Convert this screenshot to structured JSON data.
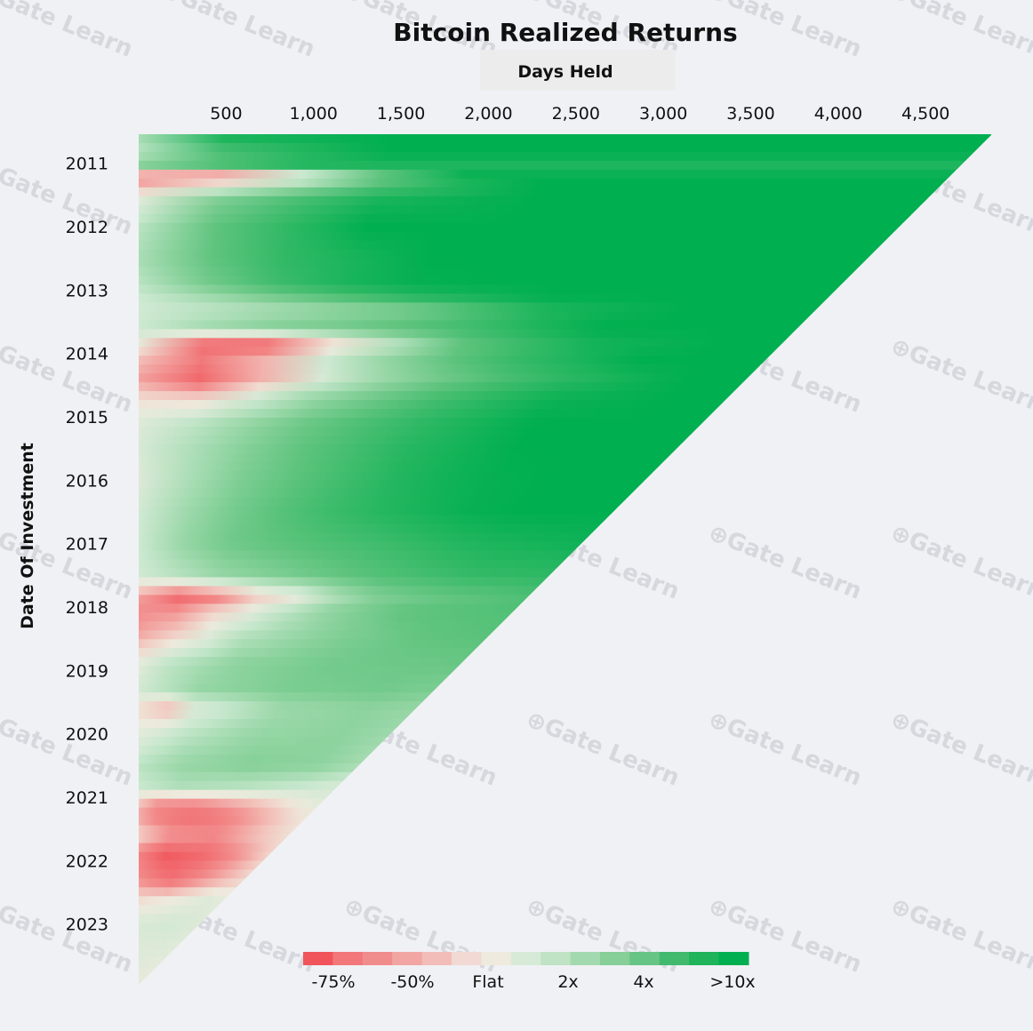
{
  "chart_data": {
    "type": "heatmap",
    "title": "Bitcoin Realized Returns",
    "xlabel": "Days Held",
    "ylabel": "Date Of Investment",
    "x_ticks": [
      500,
      1000,
      1500,
      2000,
      2500,
      3000,
      3500,
      4000,
      4500
    ],
    "x_tick_labels": [
      "500",
      "1,000",
      "1,500",
      "2,000",
      "2,500",
      "3,000",
      "3,500",
      "4,000",
      "4,500"
    ],
    "xlim": [
      0,
      4880
    ],
    "y_ticks": [
      "2011",
      "2012",
      "2013",
      "2014",
      "2015",
      "2016",
      "2017",
      "2018",
      "2019",
      "2020",
      "2021",
      "2022",
      "2023"
    ],
    "ylim": [
      "2010-07",
      "2023-12"
    ],
    "legend": {
      "labels": [
        "-75%",
        "-50%",
        "Flat",
        "2x",
        "4x",
        ">10x"
      ],
      "colors": [
        "#f0545a",
        "#f2777a",
        "#f08c8c",
        "#f2a6a3",
        "#f2bdb8",
        "#f2d9d4",
        "#eeeadd",
        "#d6ead7",
        "#bfe3c4",
        "#a3d9ae",
        "#86cf98",
        "#66c484",
        "#41ba6d",
        "#1fb35a",
        "#00af50"
      ]
    },
    "rows": [
      {
        "year": 2010.65,
        "returns": [
          [
            0,
            1.0
          ],
          [
            0.05,
            2.5
          ],
          [
            0.3,
            3.0
          ]
        ]
      },
      {
        "year": 2010.8,
        "returns": [
          [
            0,
            0.8
          ],
          [
            0.1,
            2.0
          ],
          [
            0.3,
            3.0
          ]
        ]
      },
      {
        "year": 2011.1,
        "returns": [
          [
            0,
            1.5
          ],
          [
            0.2,
            2.5
          ]
        ]
      },
      {
        "year": 2011.2,
        "returns": [
          [
            0,
            -1.5
          ],
          [
            0.06,
            -2.3
          ],
          [
            0.16,
            -1.0
          ],
          [
            0.26,
            1.0
          ],
          [
            0.4,
            3.0
          ]
        ]
      },
      {
        "year": 2011.35,
        "returns": [
          [
            0,
            -0.5
          ],
          [
            0.12,
            0.5
          ],
          [
            0.3,
            2.0
          ],
          [
            0.5,
            3.0
          ]
        ]
      },
      {
        "year": 2011.6,
        "returns": [
          [
            0,
            0.3
          ],
          [
            0.1,
            1.5
          ],
          [
            0.3,
            2.7
          ],
          [
            0.5,
            3.0
          ]
        ]
      },
      {
        "year": 2012.0,
        "returns": [
          [
            0,
            0.8
          ],
          [
            0.1,
            1.8
          ],
          [
            0.3,
            3.0
          ]
        ]
      },
      {
        "year": 2012.5,
        "returns": [
          [
            0,
            1.0
          ],
          [
            0.15,
            2.2
          ],
          [
            0.4,
            3.0
          ]
        ]
      },
      {
        "year": 2012.9,
        "returns": [
          [
            0,
            0.8
          ],
          [
            0.15,
            2.0
          ],
          [
            0.35,
            2.9
          ],
          [
            0.5,
            3.0
          ]
        ]
      },
      {
        "year": 2013.1,
        "returns": [
          [
            0,
            0.6
          ],
          [
            0.2,
            1.6
          ],
          [
            0.4,
            2.5
          ],
          [
            0.6,
            3.0
          ]
        ]
      },
      {
        "year": 2013.3,
        "returns": [
          [
            0,
            0.5
          ],
          [
            0.2,
            1.0
          ],
          [
            0.4,
            1.5
          ],
          [
            0.6,
            2.6
          ],
          [
            0.8,
            3.0
          ]
        ]
      },
      {
        "year": 2013.6,
        "returns": [
          [
            0,
            0.6
          ],
          [
            0.15,
            1.3
          ],
          [
            0.3,
            1.6
          ],
          [
            0.5,
            2.2
          ],
          [
            0.7,
            3.0
          ]
        ]
      },
      {
        "year": 2013.85,
        "returns": [
          [
            0,
            0.1
          ],
          [
            0.05,
            -1.0
          ],
          [
            0.12,
            -1.8
          ],
          [
            0.2,
            -1.6
          ],
          [
            0.28,
            -0.5
          ],
          [
            0.35,
            0.3
          ],
          [
            0.5,
            1.8
          ],
          [
            0.7,
            2.7
          ],
          [
            0.9,
            3.0
          ]
        ]
      },
      {
        "year": 2014.1,
        "returns": [
          [
            0,
            -0.5
          ],
          [
            0.05,
            -1.4
          ],
          [
            0.12,
            -1.3
          ],
          [
            0.2,
            -0.6
          ],
          [
            0.3,
            0.6
          ],
          [
            0.45,
            1.6
          ],
          [
            0.6,
            2.3
          ],
          [
            0.8,
            3.0
          ]
        ]
      },
      {
        "year": 2014.4,
        "returns": [
          [
            0,
            -0.8
          ],
          [
            0.05,
            -1.8
          ],
          [
            0.15,
            -1.5
          ],
          [
            0.22,
            -0.3
          ],
          [
            0.35,
            0.9
          ],
          [
            0.55,
            1.9
          ],
          [
            0.75,
            2.6
          ],
          [
            0.9,
            3.0
          ]
        ]
      },
      {
        "year": 2014.7,
        "returns": [
          [
            0,
            -0.2
          ],
          [
            0.07,
            -0.6
          ],
          [
            0.15,
            0.2
          ],
          [
            0.3,
            1.2
          ],
          [
            0.5,
            2.1
          ],
          [
            0.7,
            2.8
          ],
          [
            0.9,
            3.0
          ]
        ]
      },
      {
        "year": 2015.1,
        "returns": [
          [
            0,
            0.3
          ],
          [
            0.15,
            1.0
          ],
          [
            0.3,
            1.7
          ],
          [
            0.5,
            2.4
          ],
          [
            0.7,
            3.0
          ]
        ]
      },
      {
        "year": 2015.5,
        "returns": [
          [
            0,
            0.4
          ],
          [
            0.15,
            1.2
          ],
          [
            0.3,
            1.8
          ],
          [
            0.5,
            2.5
          ],
          [
            0.7,
            3.0
          ]
        ]
      },
      {
        "year": 2016.0,
        "returns": [
          [
            0,
            0.3
          ],
          [
            0.15,
            1.3
          ],
          [
            0.35,
            2.0
          ],
          [
            0.55,
            2.7
          ],
          [
            0.75,
            3.0
          ]
        ]
      },
      {
        "year": 2016.5,
        "returns": [
          [
            0,
            0.5
          ],
          [
            0.15,
            1.4
          ],
          [
            0.35,
            2.1
          ],
          [
            0.55,
            2.6
          ],
          [
            0.75,
            3.0
          ]
        ]
      },
      {
        "year": 2017.0,
        "returns": [
          [
            0,
            0.6
          ],
          [
            0.15,
            1.5
          ],
          [
            0.35,
            1.9
          ],
          [
            0.55,
            2.2
          ],
          [
            0.75,
            2.6
          ],
          [
            1,
            2.8
          ]
        ]
      },
      {
        "year": 2017.5,
        "returns": [
          [
            0,
            0.5
          ],
          [
            0.2,
            1.2
          ],
          [
            0.4,
            1.6
          ],
          [
            0.6,
            2.0
          ],
          [
            0.8,
            2.3
          ],
          [
            1,
            2.4
          ]
        ]
      },
      {
        "year": 2017.85,
        "returns": [
          [
            0,
            -0.8
          ],
          [
            0.05,
            -1.5
          ],
          [
            0.15,
            -1.8
          ],
          [
            0.25,
            -0.6
          ],
          [
            0.4,
            0.1
          ],
          [
            0.55,
            1.3
          ],
          [
            0.75,
            1.7
          ],
          [
            1,
            2.0
          ]
        ]
      },
      {
        "year": 2018.05,
        "returns": [
          [
            0,
            -1.0
          ],
          [
            0.05,
            -1.3
          ],
          [
            0.15,
            -0.6
          ],
          [
            0.3,
            0.2
          ],
          [
            0.45,
            1.1
          ],
          [
            0.7,
            1.8
          ],
          [
            1,
            2.0
          ]
        ]
      },
      {
        "year": 2018.4,
        "returns": [
          [
            0,
            -0.8
          ],
          [
            0.1,
            -0.4
          ],
          [
            0.3,
            0.8
          ],
          [
            0.55,
            1.4
          ],
          [
            0.8,
            1.8
          ],
          [
            1,
            1.9
          ]
        ]
      },
      {
        "year": 2018.9,
        "returns": [
          [
            0,
            0.2
          ],
          [
            0.1,
            0.8
          ],
          [
            0.3,
            1.3
          ],
          [
            0.6,
            1.6
          ],
          [
            1,
            1.7
          ]
        ]
      },
      {
        "year": 2019.3,
        "returns": [
          [
            0,
            0.5
          ],
          [
            0.2,
            1.2
          ],
          [
            0.5,
            1.5
          ],
          [
            0.8,
            1.6
          ],
          [
            1,
            1.5
          ]
        ]
      },
      {
        "year": 2019.6,
        "returns": [
          [
            0,
            -0.2
          ],
          [
            0.1,
            -0.6
          ],
          [
            0.2,
            0.3
          ],
          [
            0.5,
            1.1
          ],
          [
            0.8,
            1.3
          ],
          [
            1,
            1.2
          ]
        ]
      },
      {
        "year": 2020.0,
        "returns": [
          [
            0,
            0.2
          ],
          [
            0.15,
            0.7
          ],
          [
            0.45,
            1.2
          ],
          [
            0.8,
            1.3
          ],
          [
            1,
            1.1
          ]
        ]
      },
      {
        "year": 2020.5,
        "returns": [
          [
            0,
            0.8
          ],
          [
            0.2,
            1.2
          ],
          [
            0.5,
            1.4
          ],
          [
            0.8,
            1.3
          ],
          [
            1,
            1.0
          ]
        ]
      },
      {
        "year": 2020.85,
        "returns": [
          [
            0,
            0.6
          ],
          [
            0.2,
            0.9
          ],
          [
            0.5,
            0.8
          ],
          [
            0.8,
            0.6
          ],
          [
            1,
            0.4
          ]
        ]
      },
      {
        "year": 2021.05,
        "returns": [
          [
            0,
            -0.3
          ],
          [
            0.1,
            -0.8
          ],
          [
            0.3,
            -0.8
          ],
          [
            0.6,
            -0.4
          ],
          [
            0.9,
            0.2
          ],
          [
            1,
            0.3
          ]
        ]
      },
      {
        "year": 2021.3,
        "returns": [
          [
            0,
            -0.8
          ],
          [
            0.15,
            -1.4
          ],
          [
            0.35,
            -1.6
          ],
          [
            0.6,
            -1.0
          ],
          [
            0.9,
            -0.2
          ],
          [
            1,
            0.0
          ]
        ]
      },
      {
        "year": 2021.6,
        "returns": [
          [
            0,
            -0.2
          ],
          [
            0.2,
            -0.8
          ],
          [
            0.5,
            -1.0
          ],
          [
            0.8,
            -0.4
          ],
          [
            1,
            -0.1
          ]
        ]
      },
      {
        "year": 2021.9,
        "returns": [
          [
            0,
            -1.2
          ],
          [
            0.2,
            -1.9
          ],
          [
            0.5,
            -1.6
          ],
          [
            0.8,
            -0.8
          ],
          [
            1,
            -0.2
          ]
        ]
      },
      {
        "year": 2022.3,
        "returns": [
          [
            0,
            -1.0
          ],
          [
            0.3,
            -1.5
          ],
          [
            0.6,
            -0.9
          ],
          [
            1,
            -0.2
          ]
        ]
      },
      {
        "year": 2022.6,
        "returns": [
          [
            0,
            -0.2
          ],
          [
            0.4,
            0.0
          ],
          [
            0.8,
            0.3
          ],
          [
            1,
            0.1
          ]
        ]
      },
      {
        "year": 2023.0,
        "returns": [
          [
            0,
            0.4
          ],
          [
            0.5,
            0.5
          ],
          [
            1,
            0.3
          ]
        ]
      },
      {
        "year": 2023.5,
        "returns": [
          [
            0,
            0.3
          ],
          [
            1,
            0.2
          ]
        ]
      },
      {
        "year": 2023.95,
        "returns": [
          [
            0,
            0.1
          ],
          [
            1,
            0.1
          ]
        ]
      }
    ]
  },
  "watermark_text": "Gate Learn"
}
